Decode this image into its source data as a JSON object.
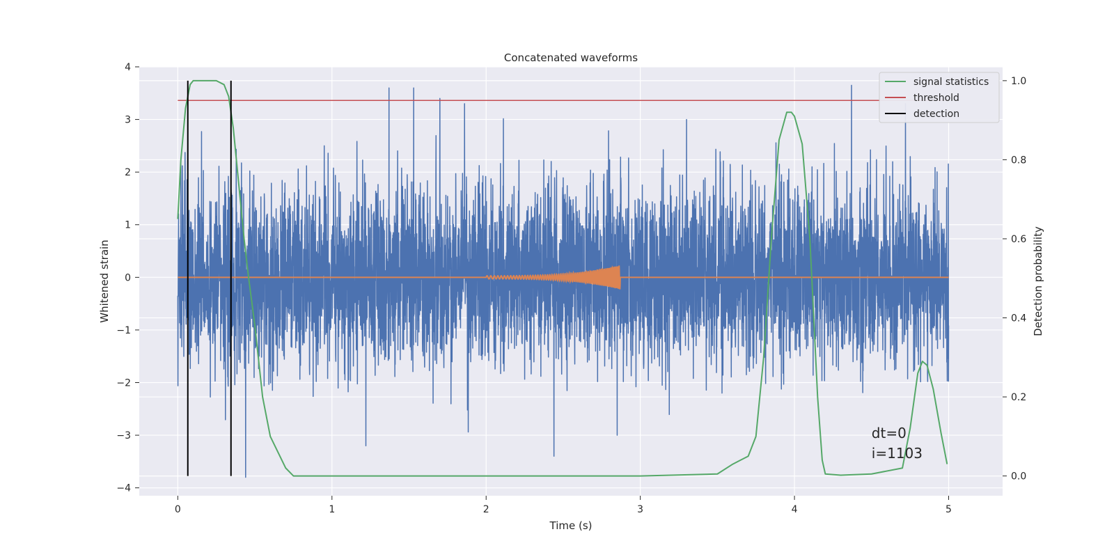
{
  "chart_data": {
    "type": "line",
    "title": "Concatenated waveforms",
    "xlabel": "Time (s)",
    "ylabel": "Whitened strain",
    "ylabel_right": "Detection probability",
    "xlim": [
      -0.25,
      5.35
    ],
    "ylim": [
      -4.15,
      4.0
    ],
    "ylim_right": [
      -0.05,
      1.035
    ],
    "x_ticks": [
      0,
      1,
      2,
      3,
      4,
      5
    ],
    "y_ticks": [
      -4,
      -3,
      -2,
      -1,
      0,
      1,
      2,
      3,
      4
    ],
    "y_ticks_right": [
      0.0,
      0.2,
      0.4,
      0.6,
      0.8,
      1.0
    ],
    "grid": true,
    "legend_position": "top-right",
    "colors": {
      "noise": "#4c72b0",
      "chirp": "#dd8452",
      "signal_statistics": "#55a868",
      "threshold": "#c44e52",
      "detection": "#000000",
      "plot_bg": "#eaeaf2",
      "grid": "#ffffff"
    },
    "noise": {
      "x_range": [
        0,
        5
      ],
      "sample_rate": 1000,
      "std": 0.85,
      "peaks": [
        {
          "x": 0.02,
          "y": 2.2
        },
        {
          "x": 0.44,
          "y": -3.8
        },
        {
          "x": 0.95,
          "y": 2.5
        },
        {
          "x": 1.37,
          "y": 3.6
        },
        {
          "x": 1.53,
          "y": 3.6
        },
        {
          "x": 1.7,
          "y": 3.4
        },
        {
          "x": 1.86,
          "y": 3.3
        },
        {
          "x": 2.44,
          "y": -3.4
        },
        {
          "x": 2.85,
          "y": -3.0
        },
        {
          "x": 3.3,
          "y": 3.0
        },
        {
          "x": 4.37,
          "y": 3.65
        },
        {
          "x": 4.72,
          "y": 3.3
        },
        {
          "x": 1.22,
          "y": -3.2
        }
      ]
    },
    "chirp": {
      "t_start": 2.0,
      "t_end": 2.87,
      "amplitude_end": 0.23
    },
    "series": [
      {
        "name": "signal statistics",
        "axis": "right",
        "x": [
          0.0,
          0.02,
          0.05,
          0.08,
          0.1,
          0.15,
          0.2,
          0.25,
          0.3,
          0.33,
          0.36,
          0.4,
          0.43,
          0.46,
          0.5,
          0.55,
          0.6,
          0.65,
          0.7,
          0.75,
          1.0,
          2.0,
          3.0,
          3.5,
          3.6,
          3.65,
          3.7,
          3.75,
          3.8,
          3.85,
          3.9,
          3.95,
          3.98,
          4.0,
          4.05,
          4.1,
          4.15,
          4.18,
          4.2,
          4.3,
          4.5,
          4.7,
          4.75,
          4.8,
          4.83,
          4.86,
          4.9,
          4.95,
          4.99
        ],
        "y": [
          0.65,
          0.8,
          0.93,
          0.99,
          1.0,
          1.0,
          1.0,
          1.0,
          0.99,
          0.96,
          0.88,
          0.72,
          0.6,
          0.5,
          0.38,
          0.2,
          0.1,
          0.06,
          0.02,
          0.0,
          0.0,
          0.0,
          0.0,
          0.005,
          0.03,
          0.04,
          0.05,
          0.1,
          0.3,
          0.6,
          0.85,
          0.92,
          0.92,
          0.91,
          0.84,
          0.6,
          0.2,
          0.04,
          0.005,
          0.002,
          0.005,
          0.02,
          0.12,
          0.26,
          0.29,
          0.28,
          0.22,
          0.11,
          0.03
        ]
      },
      {
        "name": "threshold",
        "axis": "right",
        "x": [
          0,
          5
        ],
        "y": [
          0.95,
          0.95
        ]
      },
      {
        "name": "detection",
        "axis": "right",
        "x_positions": [
          0.065,
          0.345
        ],
        "y_range": [
          0.0,
          1.0
        ]
      }
    ],
    "annotation": {
      "x": 4.5,
      "lines": [
        "dt=0",
        "i=1103"
      ]
    }
  }
}
